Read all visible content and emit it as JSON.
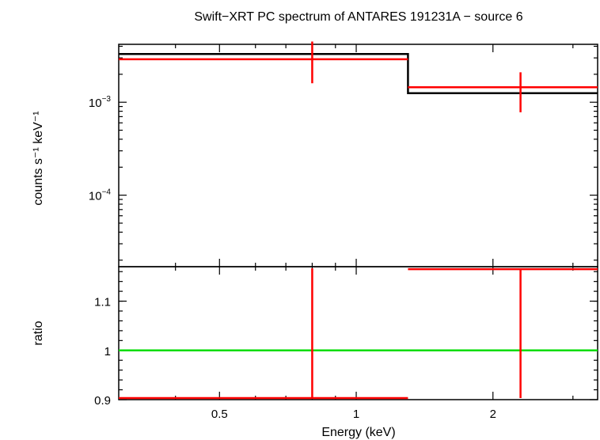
{
  "chart_data": [
    {
      "type": "line",
      "panel": "spectrum",
      "title": "Swift−XRT PC spectrum of ANTARES 191231A − source 6",
      "ylabel": "counts s⁻¹ keV⁻¹",
      "yscale": "log",
      "ylim": [
        1.7e-05,
        0.0042
      ],
      "y_ticks": [
        {
          "value": 0.001,
          "base": "10",
          "exp": "−3"
        },
        {
          "value": 0.0001,
          "base": "10",
          "exp": "−4"
        }
      ],
      "series": [
        {
          "role": "data",
          "color": "#ff0000",
          "points": [
            {
              "x": 0.8,
              "xlo": 0.3,
              "xhi": 1.3,
              "y": 0.0029,
              "ylo": 0.0016,
              "yhi": 0.0045
            },
            {
              "x": 2.3,
              "xlo": 1.3,
              "xhi": 10.0,
              "y": 0.00145,
              "ylo": 0.00078,
              "yhi": 0.0021
            }
          ]
        },
        {
          "role": "model",
          "color": "#000000",
          "steps": [
            {
              "xlo": 0.3,
              "xhi": 1.3,
              "y": 0.0033
            },
            {
              "xlo": 1.3,
              "xhi": 10.0,
              "y": 0.00125
            }
          ]
        }
      ]
    },
    {
      "type": "line",
      "panel": "ratio",
      "ylabel": "ratio",
      "xlabel": "Energy (keV)",
      "xscale": "log",
      "xlim": [
        0.3,
        3.4
      ],
      "ylim": [
        0.9,
        1.17
      ],
      "x_ticks": [
        {
          "value": 0.5,
          "label": "0.5"
        },
        {
          "value": 1,
          "label": "1"
        },
        {
          "value": 2,
          "label": "2"
        }
      ],
      "y_ticks": [
        {
          "value": 0.9,
          "label": "0.9"
        },
        {
          "value": 1,
          "label": "1"
        },
        {
          "value": 1.1,
          "label": "1.1"
        }
      ],
      "reference_line": {
        "y": 1,
        "color": "#00dd00"
      },
      "series": [
        {
          "role": "data",
          "color": "#ff0000",
          "points": [
            {
              "x": 0.8,
              "xlo": 0.3,
              "xhi": 1.3,
              "y": 0.9,
              "ylo": 0.9,
              "yhi": 1.17
            },
            {
              "x": 2.3,
              "xlo": 1.3,
              "xhi": 10.0,
              "y": 1.165,
              "ylo": 0.9,
              "yhi": 1.17
            }
          ]
        }
      ]
    }
  ]
}
